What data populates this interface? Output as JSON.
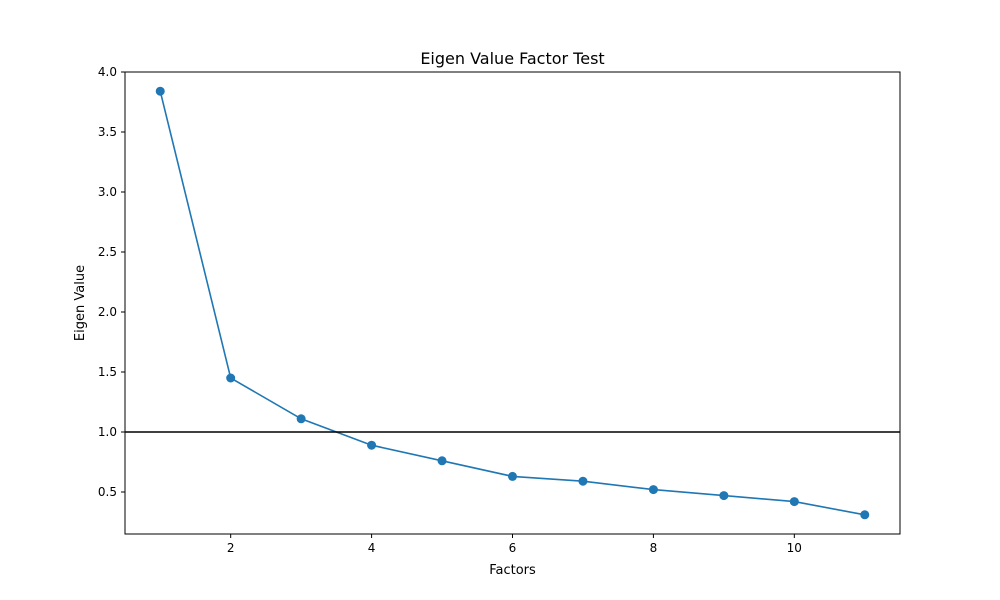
{
  "chart_data": {
    "type": "line",
    "title": "Eigen Value Factor Test",
    "xlabel": "Factors",
    "ylabel": "Eigen Value",
    "x": [
      1,
      2,
      3,
      4,
      5,
      6,
      7,
      8,
      9,
      10,
      11
    ],
    "series": [
      {
        "values": [
          3.84,
          1.45,
          1.11,
          0.89,
          0.76,
          0.63,
          0.59,
          0.52,
          0.47,
          0.42,
          0.31
        ]
      }
    ],
    "xlim": [
      0.5,
      11.5
    ],
    "ylim": [
      0.15,
      4.0
    ],
    "xticks": [
      2,
      4,
      6,
      8,
      10
    ],
    "yticks": [
      0.5,
      1.0,
      1.5,
      2.0,
      2.5,
      3.0,
      3.5,
      4.0
    ],
    "reference_line": {
      "y": 1.0,
      "color": "#000000"
    },
    "colors": {
      "series": "#1f77b4"
    },
    "marker": "circle",
    "grid": false
  }
}
